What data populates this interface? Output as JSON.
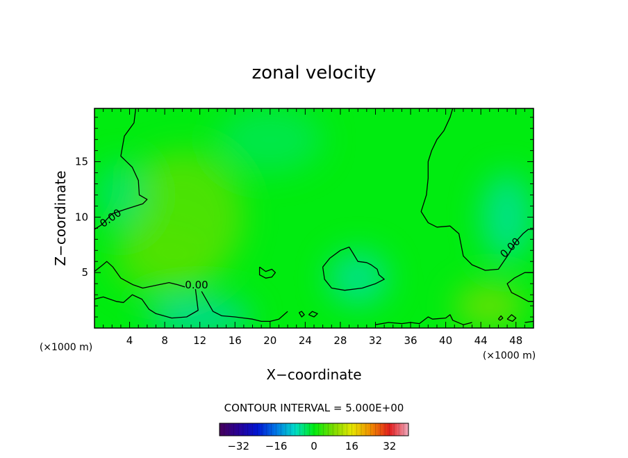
{
  "chart_data": {
    "type": "heatmap",
    "title": "zonal velocity",
    "xlabel": "X−coordinate",
    "ylabel": "Z−coordinate",
    "x_unit_label": "(×1000 m)",
    "x_unit_label_right": "(×1000 m)",
    "xlim": [
      0,
      50
    ],
    "ylim": [
      0,
      19.8
    ],
    "x_ticks": [
      4,
      8,
      12,
      16,
      20,
      24,
      28,
      32,
      36,
      40,
      44,
      48
    ],
    "y_ticks": [
      5,
      10,
      15
    ],
    "contour_interval_text": "CONTOUR INTERVAL = 5.000E+00",
    "contour_labels": [
      "0.00",
      "0.00",
      "0.00"
    ],
    "colorbar": {
      "range": [
        -40,
        40
      ],
      "tick_values": [
        -32,
        -16,
        0,
        16,
        32
      ],
      "tick_labels": [
        "−32",
        "−16",
        "0",
        "16",
        "32"
      ]
    },
    "colors": {
      "field_background": "#00ec10",
      "zero_contour": "#000000"
    },
    "field_blobs": [
      {
        "x": 10,
        "y": 10,
        "rx": 7,
        "ry": 6,
        "value": 3
      },
      {
        "x": 8,
        "y": 6,
        "rx": 6,
        "ry": 3,
        "value": 2.5
      },
      {
        "x": 3,
        "y": 12,
        "rx": 3,
        "ry": 3,
        "value": -2
      },
      {
        "x": 30,
        "y": 4.5,
        "rx": 3.5,
        "ry": 2.5,
        "value": -3
      },
      {
        "x": 47,
        "y": 10,
        "rx": 3,
        "ry": 4,
        "value": -3
      },
      {
        "x": 12,
        "y": 1,
        "rx": 6,
        "ry": 1.5,
        "value": -4
      },
      {
        "x": 45,
        "y": 2,
        "rx": 4,
        "ry": 2,
        "value": 4
      },
      {
        "x": 20,
        "y": 17,
        "rx": 6,
        "ry": 3,
        "value": -1.5
      }
    ],
    "zero_contours": [
      [
        [
          4.7,
          19.8
        ],
        [
          4.5,
          18.5
        ],
        [
          3.4,
          17.3
        ],
        [
          3.0,
          15.5
        ],
        [
          4.3,
          14.5
        ],
        [
          5.0,
          13.3
        ],
        [
          5.1,
          12.0
        ],
        [
          6.0,
          11.6
        ],
        [
          5.5,
          11.2
        ],
        [
          3.5,
          10.7
        ],
        [
          2.0,
          10.3
        ],
        [
          0.8,
          9.3
        ],
        [
          0,
          8.9
        ]
      ],
      [
        [
          0,
          5.1
        ],
        [
          0.8,
          5.6
        ],
        [
          1.4,
          6.0
        ],
        [
          2.1,
          5.5
        ],
        [
          3.0,
          4.5
        ],
        [
          4.4,
          3.9
        ],
        [
          5.5,
          3.6
        ],
        [
          7.3,
          3.9
        ],
        [
          8.5,
          4.1
        ],
        [
          9.5,
          3.9
        ],
        [
          10.3,
          3.7
        ]
      ],
      [
        [
          0,
          2.6
        ],
        [
          1.0,
          2.8
        ],
        [
          2.5,
          2.4
        ],
        [
          3.3,
          2.3
        ],
        [
          4.3,
          3.0
        ],
        [
          5.4,
          2.6
        ],
        [
          6.2,
          1.7
        ],
        [
          7.0,
          1.3
        ],
        [
          8.8,
          0.9
        ],
        [
          10.5,
          1.0
        ],
        [
          11.8,
          1.6
        ],
        [
          11.5,
          3.5
        ]
      ],
      [
        [
          12.2,
          3.3
        ],
        [
          13.5,
          1.5
        ],
        [
          14.5,
          1.1
        ],
        [
          16.0,
          1.0
        ],
        [
          17.0,
          0.9
        ],
        [
          18.0,
          0.8
        ],
        [
          19.0,
          0.6
        ],
        [
          20.0,
          0.6
        ],
        [
          21.0,
          0.8
        ],
        [
          22.0,
          1.5
        ]
      ],
      [
        [
          23.3,
          1.4
        ],
        [
          23.6,
          1.0
        ],
        [
          23.9,
          1.2
        ],
        [
          23.6,
          1.5
        ],
        [
          23.3,
          1.4
        ]
      ],
      [
        [
          24.4,
          1.2
        ],
        [
          25.0,
          1.0
        ],
        [
          25.4,
          1.3
        ],
        [
          24.8,
          1.5
        ],
        [
          24.4,
          1.2
        ]
      ],
      [
        [
          18.8,
          5.5
        ],
        [
          19.5,
          5.1
        ],
        [
          20.2,
          5.3
        ],
        [
          20.6,
          5.0
        ],
        [
          20.2,
          4.6
        ],
        [
          19.5,
          4.5
        ],
        [
          18.8,
          4.8
        ],
        [
          18.8,
          5.5
        ]
      ],
      [
        [
          26.0,
          5.5
        ],
        [
          26.8,
          6.3
        ],
        [
          28.0,
          7.0
        ],
        [
          29.0,
          7.3
        ],
        [
          29.4,
          6.8
        ],
        [
          30.0,
          6.0
        ],
        [
          31.0,
          5.9
        ],
        [
          31.5,
          5.7
        ],
        [
          32.2,
          5.3
        ],
        [
          32.4,
          4.8
        ],
        [
          33.0,
          4.4
        ],
        [
          32.0,
          4.0
        ],
        [
          30.5,
          3.6
        ],
        [
          28.5,
          3.4
        ],
        [
          27.0,
          3.6
        ],
        [
          26.2,
          4.4
        ],
        [
          26.0,
          5.5
        ]
      ],
      [
        [
          40.8,
          19.8
        ],
        [
          40.5,
          19.0
        ],
        [
          39.8,
          17.8
        ],
        [
          39.0,
          17.0
        ],
        [
          38.4,
          16.0
        ],
        [
          38.0,
          15.0
        ],
        [
          38.0,
          13.5
        ],
        [
          37.8,
          12.0
        ],
        [
          37.2,
          10.5
        ],
        [
          38.0,
          9.5
        ],
        [
          39.0,
          9.1
        ],
        [
          40.5,
          9.2
        ],
        [
          41.5,
          8.5
        ],
        [
          42.0,
          6.5
        ],
        [
          43.0,
          5.7
        ],
        [
          44.5,
          5.2
        ],
        [
          46.0,
          5.3
        ],
        [
          47.2,
          6.7
        ],
        [
          48.0,
          7.8
        ],
        [
          48.8,
          8.5
        ],
        [
          49.4,
          8.9
        ],
        [
          50,
          8.9
        ]
      ],
      [
        [
          50,
          5.0
        ],
        [
          49.0,
          5.0
        ],
        [
          47.8,
          4.5
        ],
        [
          47.0,
          4.0
        ],
        [
          47.5,
          3.2
        ],
        [
          48.5,
          2.8
        ],
        [
          49.4,
          2.4
        ],
        [
          50,
          2.4
        ]
      ],
      [
        [
          32.0,
          0.3
        ],
        [
          33.5,
          0.5
        ],
        [
          35.0,
          0.4
        ],
        [
          36.0,
          0.5
        ],
        [
          37.0,
          0.4
        ],
        [
          38.0,
          1.0
        ],
        [
          38.5,
          0.8
        ],
        [
          40.0,
          0.9
        ],
        [
          40.5,
          1.2
        ],
        [
          40.8,
          0.7
        ],
        [
          42.0,
          0.3
        ],
        [
          43.0,
          0.5
        ]
      ],
      [
        [
          46.0,
          0.8
        ],
        [
          46.3,
          1.1
        ],
        [
          46.5,
          0.9
        ],
        [
          46.2,
          0.7
        ],
        [
          46.0,
          0.8
        ]
      ],
      [
        [
          47.0,
          0.8
        ],
        [
          47.5,
          1.2
        ],
        [
          48.0,
          0.9
        ],
        [
          47.6,
          0.6
        ],
        [
          47.0,
          0.8
        ]
      ],
      [
        [
          49.0,
          0.5
        ],
        [
          50,
          0.6
        ]
      ]
    ]
  }
}
